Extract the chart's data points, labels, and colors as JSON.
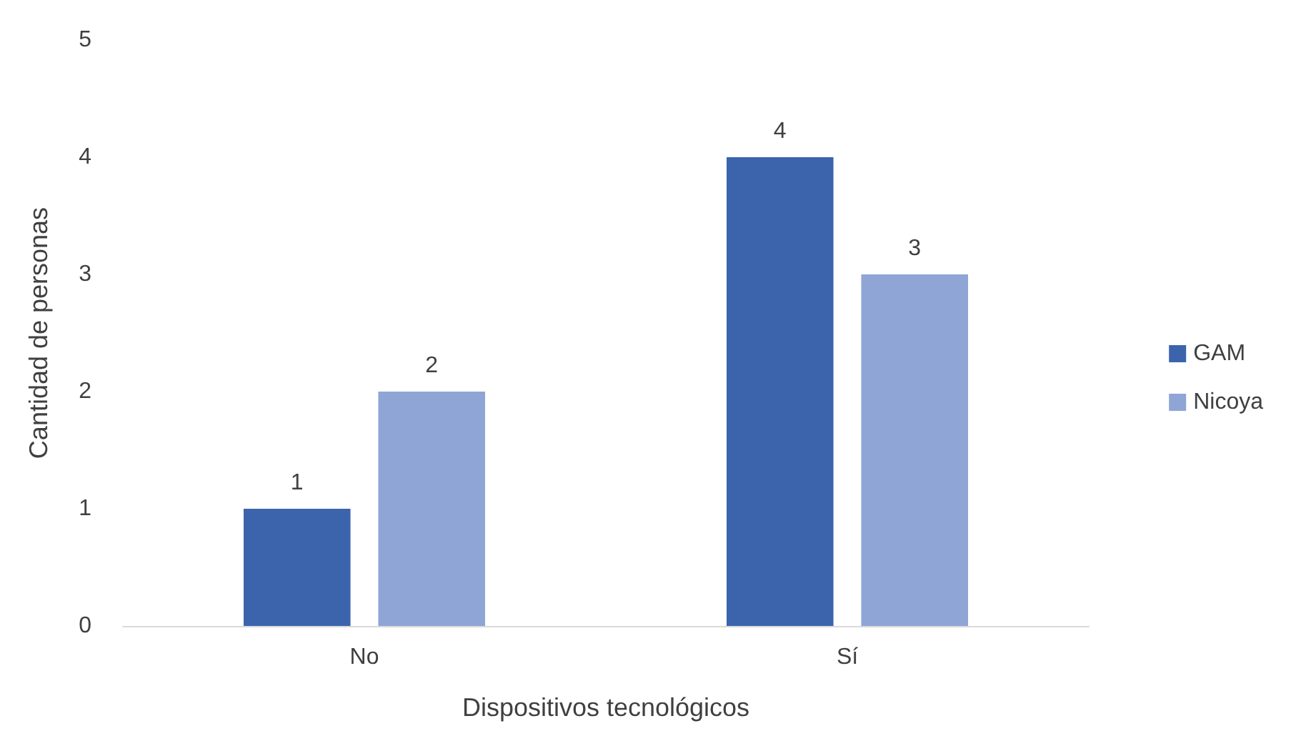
{
  "chart_data": {
    "type": "bar",
    "xlabel": "Dispositivos tecnológicos",
    "ylabel": "Cantidad de personas",
    "categories": [
      "No",
      "Sí"
    ],
    "series": [
      {
        "name": "GAM",
        "color": "#3c64ad",
        "values": [
          1,
          4
        ]
      },
      {
        "name": "Nicoya",
        "color": "#8fa5d6",
        "values": [
          2,
          3
        ]
      }
    ],
    "ylim": [
      0,
      5
    ],
    "yticks": [
      0,
      1,
      2,
      3,
      4,
      5
    ],
    "grid": false,
    "legend": "right",
    "data_labels": true
  }
}
